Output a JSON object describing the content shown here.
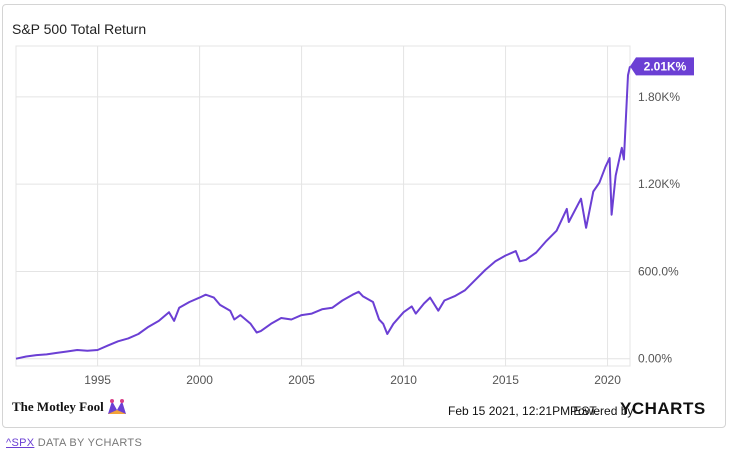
{
  "chart_data": {
    "type": "line",
    "title": "S&P 500 Total Return",
    "xlabel": "",
    "ylabel": "",
    "xlim": [
      1991.0,
      2021.1
    ],
    "ylim": [
      -0.5,
      21.5
    ],
    "x_ticks": [
      1995,
      2000,
      2005,
      2010,
      2015,
      2020
    ],
    "x_tick_labels": [
      "1995",
      "2000",
      "2005",
      "2010",
      "2015",
      "2020"
    ],
    "y_ticks": [
      0,
      6,
      12,
      18
    ],
    "y_tick_labels": [
      "0.00%",
      "600.0%",
      "1.20K%",
      "1.80K%"
    ],
    "y_units_note": "",
    "last_value_label": "2.01K%",
    "grid": true,
    "line_color": "#6b3fd4",
    "series": [
      {
        "name": "",
        "unit": "hundreds of percent",
        "points": [
          [
            1991.0,
            0.0
          ],
          [
            1991.5,
            0.15
          ],
          [
            1992.0,
            0.25
          ],
          [
            1992.5,
            0.3
          ],
          [
            1993.0,
            0.4
          ],
          [
            1993.5,
            0.5
          ],
          [
            1994.0,
            0.6
          ],
          [
            1994.5,
            0.55
          ],
          [
            1995.0,
            0.6
          ],
          [
            1995.5,
            0.9
          ],
          [
            1996.0,
            1.2
          ],
          [
            1996.5,
            1.4
          ],
          [
            1997.0,
            1.7
          ],
          [
            1997.5,
            2.2
          ],
          [
            1998.0,
            2.6
          ],
          [
            1998.5,
            3.2
          ],
          [
            1998.75,
            2.6
          ],
          [
            1999.0,
            3.5
          ],
          [
            1999.5,
            3.9
          ],
          [
            2000.0,
            4.2
          ],
          [
            2000.3,
            4.4
          ],
          [
            2000.7,
            4.2
          ],
          [
            2001.0,
            3.7
          ],
          [
            2001.5,
            3.3
          ],
          [
            2001.7,
            2.7
          ],
          [
            2002.0,
            3.0
          ],
          [
            2002.5,
            2.4
          ],
          [
            2002.8,
            1.8
          ],
          [
            2003.0,
            1.9
          ],
          [
            2003.5,
            2.4
          ],
          [
            2004.0,
            2.8
          ],
          [
            2004.5,
            2.7
          ],
          [
            2005.0,
            3.0
          ],
          [
            2005.5,
            3.1
          ],
          [
            2006.0,
            3.4
          ],
          [
            2006.5,
            3.5
          ],
          [
            2007.0,
            4.0
          ],
          [
            2007.5,
            4.4
          ],
          [
            2007.8,
            4.6
          ],
          [
            2008.0,
            4.3
          ],
          [
            2008.5,
            3.9
          ],
          [
            2008.8,
            2.7
          ],
          [
            2009.0,
            2.4
          ],
          [
            2009.2,
            1.7
          ],
          [
            2009.5,
            2.4
          ],
          [
            2010.0,
            3.2
          ],
          [
            2010.4,
            3.6
          ],
          [
            2010.6,
            3.1
          ],
          [
            2011.0,
            3.8
          ],
          [
            2011.3,
            4.2
          ],
          [
            2011.7,
            3.3
          ],
          [
            2012.0,
            4.0
          ],
          [
            2012.5,
            4.3
          ],
          [
            2013.0,
            4.7
          ],
          [
            2013.5,
            5.4
          ],
          [
            2014.0,
            6.1
          ],
          [
            2014.5,
            6.7
          ],
          [
            2015.0,
            7.1
          ],
          [
            2015.5,
            7.4
          ],
          [
            2015.7,
            6.7
          ],
          [
            2016.0,
            6.8
          ],
          [
            2016.5,
            7.3
          ],
          [
            2017.0,
            8.1
          ],
          [
            2017.5,
            8.8
          ],
          [
            2018.0,
            10.3
          ],
          [
            2018.1,
            9.4
          ],
          [
            2018.7,
            11.0
          ],
          [
            2018.95,
            9.0
          ],
          [
            2019.3,
            11.5
          ],
          [
            2019.6,
            12.1
          ],
          [
            2019.9,
            13.2
          ],
          [
            2020.1,
            13.8
          ],
          [
            2020.2,
            9.9
          ],
          [
            2020.4,
            12.6
          ],
          [
            2020.7,
            14.5
          ],
          [
            2020.8,
            13.7
          ],
          [
            2021.0,
            19.5
          ],
          [
            2021.1,
            20.1
          ]
        ]
      }
    ]
  },
  "footer": {
    "timestamp": "Feb 15 2021, 12:21PM EST.",
    "powered_by": "Powered by",
    "ycharts_logo": "YCHARTS",
    "brand_logo": "The Motley Fool"
  },
  "source_line": {
    "ticker_link": "^SPX",
    "data_by": "DATA BY YCHARTS"
  },
  "colors": {
    "line": "#6b3fd4",
    "grid": "#e4e4e4",
    "axis_text": "#555555"
  }
}
